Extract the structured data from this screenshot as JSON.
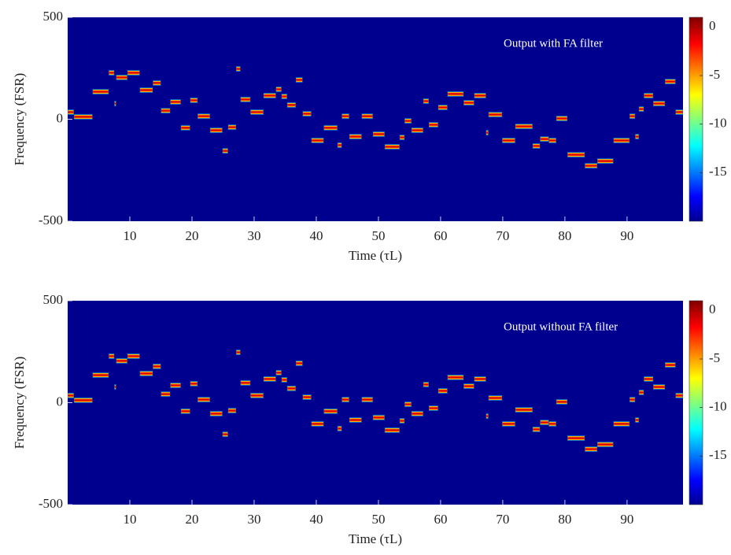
{
  "chart_data": [
    {
      "type": "step-heatmap",
      "annotation": "Output with FA filter",
      "xlabel": "Time (τL)",
      "ylabel": "Frequency (FSR)",
      "xlim": [
        0,
        99
      ],
      "xticks": [
        10,
        20,
        30,
        40,
        50,
        60,
        70,
        80,
        90
      ],
      "ylim": [
        -500,
        500
      ],
      "yticks": [
        500,
        0,
        -500
      ],
      "clim": [
        -20,
        1
      ],
      "cticks": [
        0,
        -5,
        -10,
        -15
      ],
      "colormap": "jet",
      "background": "#00008f",
      "x": [
        0,
        1,
        4,
        6.6,
        7.5,
        7.8,
        9.6,
        11.6,
        13.7,
        15,
        16.5,
        18.2,
        19.7,
        20.9,
        22.9,
        24.9,
        25.8,
        27.1,
        27.8,
        29.4,
        31.5,
        33.5,
        34.4,
        35.3,
        36.7,
        37.8,
        39.2,
        41.2,
        43.4,
        44.1,
        45.3,
        47.3,
        49.1,
        51,
        53.4,
        54.2,
        55.3,
        57.2,
        58.1,
        59.6,
        61.1,
        63.7,
        65.4,
        67.3,
        67.7,
        69.9,
        72,
        74.8,
        76,
        77.4,
        78.6,
        80.4,
        83.2,
        85.2,
        87.8,
        90.4,
        91.3,
        91.9,
        92.7,
        94.2,
        96.1,
        97.8
      ],
      "values": [
        35,
        12,
        135,
        228,
        77,
        205,
        228,
        143,
        178,
        42,
        85,
        -42,
        93,
        15,
        -54,
        -155,
        -39,
        247,
        97,
        35,
        116,
        147,
        112,
        70,
        193,
        27,
        -104,
        -42,
        -127,
        15,
        -85,
        15,
        -73,
        -135,
        -89,
        -8,
        -54,
        89,
        -27,
        58,
        124,
        81,
        116,
        -66,
        23,
        -104,
        -35,
        -131,
        -97,
        -104,
        4,
        -174,
        -228,
        -205,
        -104,
        15,
        -85,
        50,
        116,
        77,
        185,
        35
      ]
    },
    {
      "type": "step-heatmap",
      "annotation": "Output without FA filter",
      "xlabel": "Time (τL)",
      "ylabel": "Frequency (FSR)",
      "xlim": [
        0,
        99
      ],
      "xticks": [
        10,
        20,
        30,
        40,
        50,
        60,
        70,
        80,
        90
      ],
      "ylim": [
        -500,
        500
      ],
      "yticks": [
        500,
        0,
        -500
      ],
      "clim": [
        -20,
        1
      ],
      "cticks": [
        0,
        -5,
        -10,
        -15
      ],
      "colormap": "jet",
      "background": "#00008f",
      "x": [
        0,
        1,
        4,
        6.6,
        7.5,
        7.8,
        9.6,
        11.6,
        13.7,
        15,
        16.5,
        18.2,
        19.7,
        20.9,
        22.9,
        24.9,
        25.8,
        27.1,
        27.8,
        29.4,
        31.5,
        33.5,
        34.4,
        35.3,
        36.7,
        37.8,
        39.2,
        41.2,
        43.4,
        44.1,
        45.3,
        47.3,
        49.1,
        51,
        53.4,
        54.2,
        55.3,
        57.2,
        58.1,
        59.6,
        61.1,
        63.7,
        65.4,
        67.3,
        67.7,
        69.9,
        72,
        74.8,
        76,
        77.4,
        78.6,
        80.4,
        83.2,
        85.2,
        87.8,
        90.4,
        91.3,
        91.9,
        92.7,
        94.2,
        96.1,
        97.8
      ],
      "values": [
        35,
        12,
        135,
        228,
        77,
        205,
        228,
        143,
        178,
        42,
        85,
        -42,
        93,
        15,
        -54,
        -155,
        -39,
        247,
        97,
        35,
        116,
        147,
        112,
        70,
        193,
        27,
        -104,
        -42,
        -127,
        15,
        -85,
        15,
        -73,
        -135,
        -89,
        -8,
        -54,
        89,
        -27,
        58,
        124,
        81,
        116,
        -66,
        23,
        -104,
        -35,
        -131,
        -97,
        -104,
        4,
        -174,
        -228,
        -205,
        -104,
        15,
        -85,
        50,
        116,
        77,
        185,
        35
      ]
    }
  ]
}
